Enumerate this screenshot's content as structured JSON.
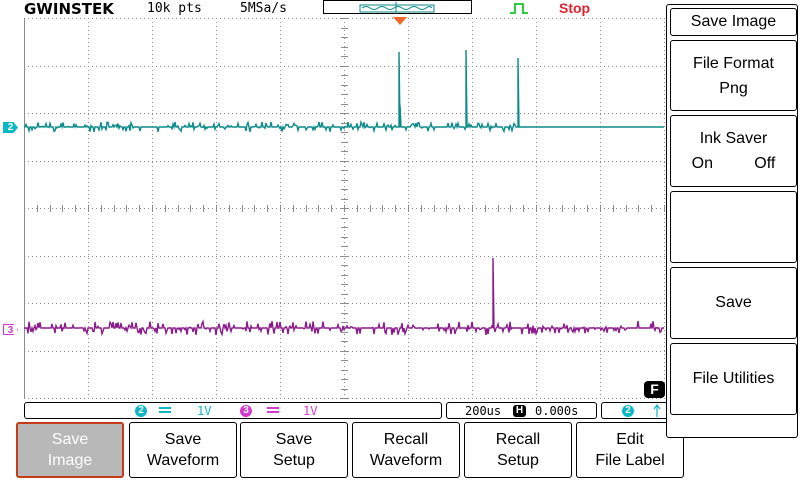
{
  "header": {
    "logo": "GWINSTEK",
    "record_length": "10k pts",
    "sample_rate": "5MSa/s",
    "run_state": "Stop",
    "run_state_color": "#e0212f"
  },
  "channels": {
    "ch2": {
      "marker": "2",
      "color": "#0b8a8a",
      "scale": "1V"
    },
    "ch3": {
      "marker": "3",
      "color": "#8b1a8b",
      "scale": "1V"
    }
  },
  "info_bar": {
    "ch2_number": "2",
    "ch2_scale": "1V",
    "ch3_number": "3",
    "ch3_scale": "1V",
    "timebase": "200us",
    "horizontal_icon": "H",
    "position": "0.000s",
    "trigger_source": "2"
  },
  "softkeys": [
    {
      "line1": "Save",
      "line2": "Image"
    },
    {
      "line1": "Save",
      "line2": "Waveform"
    },
    {
      "line1": "Save",
      "line2": "Setup"
    },
    {
      "line1": "Recall",
      "line2": "Waveform"
    },
    {
      "line1": "Recall",
      "line2": "Setup"
    },
    {
      "line1": "Edit",
      "line2": "File Label"
    }
  ],
  "side_menu": {
    "title": "Save Image",
    "file_format_label": "File Format",
    "file_format_value": "Png",
    "ink_saver_label": "Ink Saver",
    "ink_saver_on": "On",
    "ink_saver_off": "Off",
    "save_label": "Save",
    "file_utilities_label": "File Utilities",
    "f_icon": "F"
  }
}
